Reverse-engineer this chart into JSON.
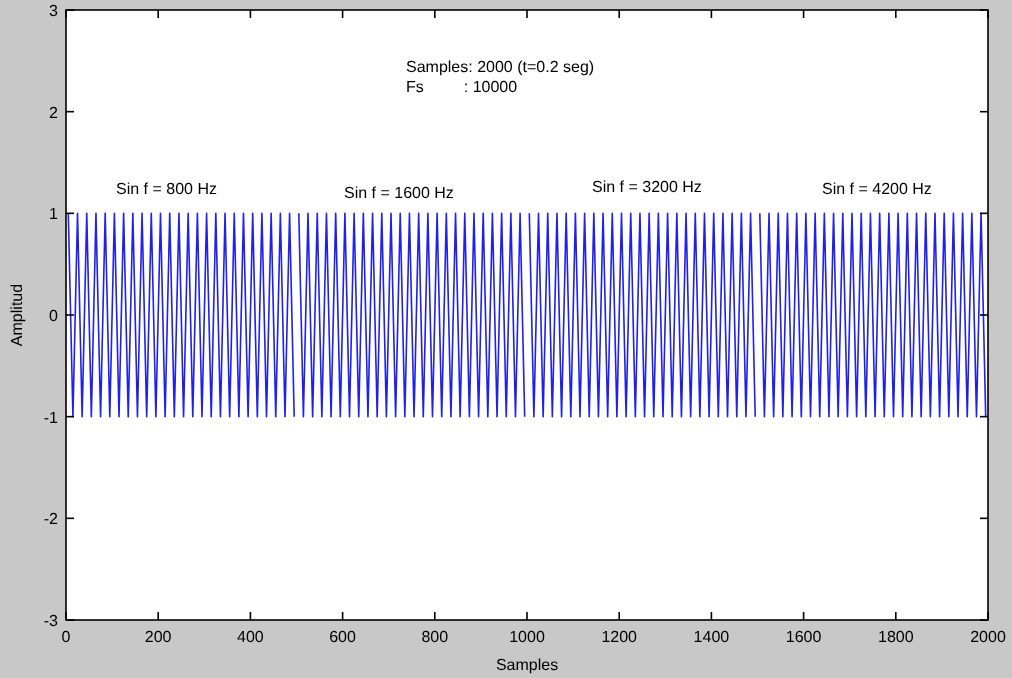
{
  "chart_data": {
    "type": "line",
    "xlabel": "Samples",
    "ylabel": "Amplitud",
    "xlim": [
      0,
      2000
    ],
    "ylim": [
      -3,
      3
    ],
    "xticks": [
      0,
      200,
      400,
      600,
      800,
      1000,
      1200,
      1400,
      1600,
      1800,
      2000
    ],
    "yticks": [
      -3,
      -2,
      -1,
      0,
      1,
      2,
      3
    ],
    "grid": false,
    "annotations": [
      "Samples: 2000 (t=0.2 seg)",
      "Fs         : 10000",
      "Sin f = 800 Hz",
      "Sin f = 1600 Hz",
      "Sin f = 3200 Hz",
      "Sin f = 4200 Hz"
    ],
    "series": [
      {
        "color": "#2020e8",
        "x": [
          5,
          15,
          25,
          35,
          45,
          55,
          65,
          75,
          85,
          95,
          105,
          115,
          125,
          135,
          145,
          155,
          165,
          175,
          185,
          195,
          205,
          215,
          225,
          235,
          245,
          255,
          265,
          275,
          285,
          295,
          305,
          315,
          325,
          335,
          345,
          355,
          365,
          375,
          385,
          395,
          405,
          415,
          425,
          435,
          445,
          455,
          465,
          475,
          485,
          495
        ],
        "values": [
          1,
          -1,
          1,
          -1,
          1,
          -1,
          1,
          -1,
          1,
          -1,
          1,
          -1,
          1,
          -1,
          1,
          -1,
          1,
          -1,
          1,
          -1,
          1,
          -1,
          1,
          -1,
          1,
          -1,
          1,
          -1,
          1,
          -1,
          1,
          -1,
          1,
          -1,
          1,
          -1,
          1,
          -1,
          1,
          -1,
          1,
          -1,
          1,
          -1,
          1,
          -1,
          1,
          -1,
          1,
          -1
        ]
      },
      {
        "color": "#2020e8",
        "x": [
          505,
          515,
          525,
          535,
          545,
          555,
          565,
          575,
          585,
          595,
          605,
          615,
          625,
          635,
          645,
          655,
          665,
          675,
          685,
          695,
          705,
          715,
          725,
          735,
          745,
          755,
          765,
          775,
          785,
          795,
          805,
          815,
          825,
          835,
          845,
          855,
          865,
          875,
          885,
          895,
          905,
          915,
          925,
          935,
          945,
          955,
          965,
          975,
          985,
          995
        ],
        "values": [
          1,
          -1,
          1,
          -1,
          1,
          -1,
          1,
          -1,
          1,
          -1,
          1,
          -1,
          1,
          -1,
          1,
          -1,
          1,
          -1,
          1,
          -1,
          1,
          -1,
          1,
          -1,
          1,
          -1,
          1,
          -1,
          1,
          -1,
          1,
          -1,
          1,
          -1,
          1,
          -1,
          1,
          -1,
          1,
          -1,
          1,
          -1,
          1,
          -1,
          1,
          -1,
          1,
          -1,
          1,
          -1
        ]
      },
      {
        "color": "#2020e8",
        "x": [
          1005,
          1015,
          1025,
          1035,
          1045,
          1055,
          1065,
          1075,
          1085,
          1095,
          1105,
          1115,
          1125,
          1135,
          1145,
          1155,
          1165,
          1175,
          1185,
          1195,
          1205,
          1215,
          1225,
          1235,
          1245,
          1255,
          1265,
          1275,
          1285,
          1295,
          1305,
          1315,
          1325,
          1335,
          1345,
          1355,
          1365,
          1375,
          1385,
          1395,
          1405,
          1415,
          1425,
          1435,
          1445,
          1455,
          1465,
          1475,
          1485,
          1495
        ],
        "values": [
          1,
          -1,
          1,
          -1,
          1,
          -1,
          1,
          -1,
          1,
          -1,
          1,
          -1,
          1,
          -1,
          1,
          -1,
          1,
          -1,
          1,
          -1,
          1,
          -1,
          1,
          -1,
          1,
          -1,
          1,
          -1,
          1,
          -1,
          1,
          -1,
          1,
          -1,
          1,
          -1,
          1,
          -1,
          1,
          -1,
          1,
          -1,
          1,
          -1,
          1,
          -1,
          1,
          -1,
          1,
          -1
        ]
      },
      {
        "color": "#2020e8",
        "x": [
          1505,
          1515,
          1525,
          1535,
          1545,
          1555,
          1565,
          1575,
          1585,
          1595,
          1605,
          1615,
          1625,
          1635,
          1645,
          1655,
          1665,
          1675,
          1685,
          1695,
          1705,
          1715,
          1725,
          1735,
          1745,
          1755,
          1765,
          1775,
          1785,
          1795,
          1805,
          1815,
          1825,
          1835,
          1845,
          1855,
          1865,
          1875,
          1885,
          1895,
          1905,
          1915,
          1925,
          1935,
          1945,
          1955,
          1965,
          1975,
          1985,
          1995
        ],
        "values": [
          1,
          -1,
          1,
          -1,
          1,
          -1,
          1,
          -1,
          1,
          -1,
          1,
          -1,
          1,
          -1,
          1,
          -1,
          1,
          -1,
          1,
          -1,
          1,
          -1,
          1,
          -1,
          1,
          -1,
          1,
          -1,
          1,
          -1,
          1,
          -1,
          1,
          -1,
          1,
          -1,
          1,
          -1,
          1,
          -1,
          1,
          -1,
          1,
          -1,
          1,
          -1,
          1,
          -1,
          1,
          -1
        ]
      }
    ]
  }
}
